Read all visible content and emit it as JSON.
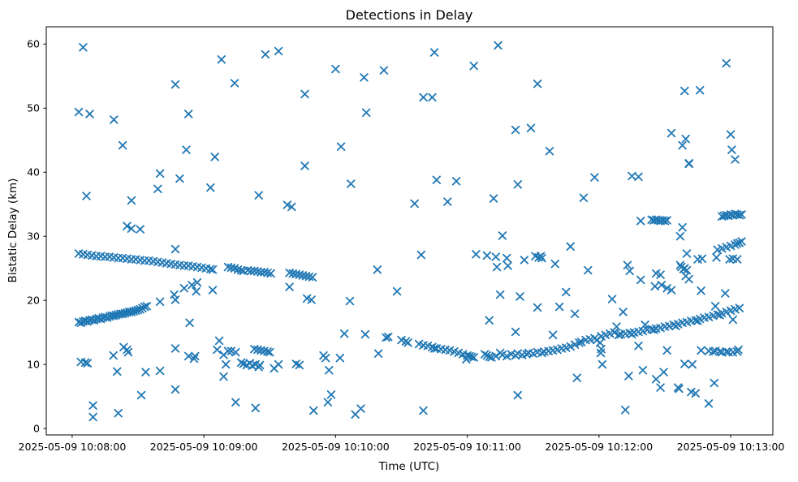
{
  "chart_data": {
    "type": "scatter",
    "title": "Detections in Delay",
    "xlabel": "Time (UTC)",
    "ylabel": "Bistatic Delay (km)",
    "marker": "x",
    "marker_color": "#1f77b4",
    "background_color": "#ffffff",
    "grid": false,
    "legend": null,
    "x_unit": "seconds since 2025-05-09 10:08:00 UTC",
    "xlim": [
      -11.8,
      319.2
    ],
    "ylim": [
      -1.0,
      62.7
    ],
    "x_ticks": [
      {
        "t": 0,
        "label": "2025-05-09 10:08:00"
      },
      {
        "t": 60,
        "label": "2025-05-09 10:09:00"
      },
      {
        "t": 120,
        "label": "2025-05-09 10:10:00"
      },
      {
        "t": 180,
        "label": "2025-05-09 10:11:00"
      },
      {
        "t": 240,
        "label": "2025-05-09 10:12:00"
      },
      {
        "t": 300,
        "label": "2025-05-09 10:13:00"
      }
    ],
    "y_ticks": [
      0,
      10,
      20,
      30,
      40,
      50,
      60
    ],
    "points": [
      [
        3,
        27.3
      ],
      [
        5,
        27.2
      ],
      [
        7,
        27.1
      ],
      [
        9,
        27.0
      ],
      [
        11,
        26.9
      ],
      [
        13,
        26.9
      ],
      [
        15,
        26.8
      ],
      [
        17,
        26.8
      ],
      [
        19,
        26.7
      ],
      [
        21,
        26.6
      ],
      [
        23,
        26.6
      ],
      [
        25,
        26.5
      ],
      [
        27,
        26.4
      ],
      [
        29,
        26.4
      ],
      [
        31,
        26.3
      ],
      [
        33,
        26.2
      ],
      [
        35,
        26.2
      ],
      [
        37,
        26.1
      ],
      [
        39,
        26.0
      ],
      [
        41,
        25.9
      ],
      [
        43,
        25.8
      ],
      [
        45,
        25.7
      ],
      [
        47,
        25.6
      ],
      [
        49,
        25.5
      ],
      [
        51,
        25.4
      ],
      [
        53,
        25.4
      ],
      [
        55,
        25.3
      ],
      [
        57,
        25.2
      ],
      [
        59,
        25.1
      ],
      [
        61,
        25.0
      ],
      [
        63,
        24.9
      ],
      [
        64,
        24.8
      ],
      [
        71,
        25.2
      ],
      [
        72.5,
        25.1
      ],
      [
        74,
        25.0
      ],
      [
        75.5,
        24.8
      ],
      [
        77,
        24.7
      ],
      [
        78,
        24.6
      ],
      [
        80,
        24.7
      ],
      [
        81.5,
        24.6
      ],
      [
        83,
        24.6
      ],
      [
        84.5,
        24.5
      ],
      [
        86,
        24.4
      ],
      [
        87.5,
        24.4
      ],
      [
        89,
        24.3
      ],
      [
        90.5,
        24.2
      ],
      [
        99,
        24.3
      ],
      [
        100.5,
        24.2
      ],
      [
        102,
        24.1
      ],
      [
        103.5,
        24.0
      ],
      [
        105,
        23.9
      ],
      [
        106.5,
        23.8
      ],
      [
        108,
        23.7
      ],
      [
        109.5,
        23.6
      ],
      [
        3,
        16.6
      ],
      [
        4,
        16.5
      ],
      [
        5,
        16.7
      ],
      [
        6,
        16.8
      ],
      [
        7,
        16.7
      ],
      [
        8,
        16.9
      ],
      [
        9,
        17.0
      ],
      [
        10,
        16.9
      ],
      [
        11,
        17.1
      ],
      [
        12,
        17.2
      ],
      [
        13,
        17.1
      ],
      [
        14,
        17.3
      ],
      [
        15,
        17.4
      ],
      [
        16,
        17.3
      ],
      [
        17,
        17.5
      ],
      [
        18,
        17.6
      ],
      [
        19,
        17.6
      ],
      [
        20,
        17.7
      ],
      [
        21,
        17.8
      ],
      [
        22,
        17.9
      ],
      [
        23,
        17.9
      ],
      [
        24,
        18.0
      ],
      [
        25,
        18.1
      ],
      [
        26,
        18.2
      ],
      [
        27,
        18.2
      ],
      [
        28,
        18.3
      ],
      [
        29,
        18.4
      ],
      [
        30,
        18.5
      ],
      [
        31,
        18.6
      ],
      [
        32,
        18.8
      ],
      [
        33,
        19.0
      ],
      [
        34,
        19.1
      ],
      [
        40,
        19.8
      ],
      [
        46.5,
        20.9
      ],
      [
        47,
        20.1
      ],
      [
        51,
        21.9
      ],
      [
        54.5,
        22.4
      ],
      [
        56.5,
        21.4
      ],
      [
        150,
        13.8
      ],
      [
        152,
        13.6
      ],
      [
        153,
        13.4
      ],
      [
        158,
        13.2
      ],
      [
        160,
        13.0
      ],
      [
        162,
        12.9
      ],
      [
        164,
        12.7
      ],
      [
        165,
        12.5
      ],
      [
        166,
        12.5
      ],
      [
        168,
        12.4
      ],
      [
        170,
        12.3
      ],
      [
        172,
        12.2
      ],
      [
        174,
        12.0
      ],
      [
        176,
        11.8
      ],
      [
        178,
        11.6
      ],
      [
        179.5,
        10.8
      ],
      [
        180,
        11.4
      ],
      [
        181,
        11.3
      ],
      [
        182,
        11.2
      ],
      [
        183,
        11.1
      ],
      [
        188,
        11.6
      ],
      [
        189,
        11.4
      ],
      [
        190,
        11.2
      ],
      [
        191,
        11.1
      ],
      [
        193,
        11.3
      ],
      [
        195,
        11.8
      ],
      [
        196,
        11.5
      ],
      [
        198,
        11.3
      ],
      [
        200,
        11.6
      ],
      [
        202,
        11.4
      ],
      [
        203,
        11.7
      ],
      [
        205,
        11.5
      ],
      [
        207,
        11.6
      ],
      [
        208,
        11.8
      ],
      [
        210,
        11.7
      ],
      [
        212,
        11.9
      ],
      [
        214,
        11.8
      ],
      [
        215,
        12.0
      ],
      [
        217,
        12.1
      ],
      [
        219,
        12.2
      ],
      [
        221,
        12.3
      ],
      [
        223,
        12.5
      ],
      [
        225,
        12.6
      ],
      [
        227,
        12.8
      ],
      [
        229,
        13.1
      ],
      [
        231,
        13.4
      ],
      [
        232,
        13.5
      ],
      [
        234,
        13.8
      ],
      [
        236,
        13.9
      ],
      [
        238,
        14.1
      ],
      [
        239,
        13.8
      ],
      [
        241,
        14.4
      ],
      [
        243,
        14.6
      ],
      [
        245,
        14.8
      ],
      [
        247,
        15.0
      ],
      [
        249,
        14.6
      ],
      [
        250,
        14.7
      ],
      [
        252,
        14.8
      ],
      [
        254,
        14.9
      ],
      [
        255,
        14.7
      ],
      [
        256,
        15.0
      ],
      [
        258,
        15.1
      ],
      [
        260,
        15.2
      ],
      [
        262,
        15.4
      ],
      [
        264,
        15.5
      ],
      [
        265,
        15.4
      ],
      [
        266,
        15.6
      ],
      [
        268,
        15.7
      ],
      [
        270,
        15.9
      ],
      [
        272,
        16.0
      ],
      [
        274,
        16.2
      ],
      [
        275,
        16.0
      ],
      [
        276,
        16.3
      ],
      [
        278,
        16.5
      ],
      [
        280,
        16.6
      ],
      [
        282,
        16.8
      ],
      [
        284,
        16.9
      ],
      [
        285,
        16.8
      ],
      [
        286,
        17.1
      ],
      [
        288,
        17.3
      ],
      [
        290,
        17.4
      ],
      [
        292,
        17.6
      ],
      [
        294,
        17.8
      ],
      [
        295,
        17.7
      ],
      [
        296,
        18.0
      ],
      [
        298,
        18.2
      ],
      [
        300,
        18.4
      ],
      [
        302,
        18.6
      ],
      [
        304,
        18.8
      ],
      [
        264,
        32.6
      ],
      [
        265,
        32.5
      ],
      [
        266,
        32.6
      ],
      [
        267,
        32.5
      ],
      [
        268,
        32.4
      ],
      [
        269,
        32.5
      ],
      [
        270,
        32.4
      ],
      [
        271,
        32.5
      ],
      [
        296,
        33.1
      ],
      [
        297,
        33.2
      ],
      [
        298,
        33.3
      ],
      [
        299,
        33.2
      ],
      [
        300,
        33.4
      ],
      [
        301,
        33.3
      ],
      [
        302,
        33.5
      ],
      [
        303,
        33.4
      ],
      [
        304,
        33.3
      ],
      [
        305,
        33.4
      ],
      [
        294,
        27.9
      ],
      [
        296,
        28.1
      ],
      [
        298,
        28.3
      ],
      [
        300,
        28.5
      ],
      [
        302,
        28.7
      ],
      [
        303,
        28.9
      ],
      [
        304,
        29.0
      ],
      [
        305,
        29.2
      ],
      [
        290,
        12.1
      ],
      [
        292,
        12.0
      ],
      [
        293,
        12.1
      ],
      [
        295,
        12.0
      ],
      [
        296,
        11.9
      ],
      [
        298,
        12.0
      ],
      [
        299,
        11.9
      ],
      [
        301,
        11.9
      ],
      [
        303,
        12.0
      ],
      [
        303.5,
        12.3
      ],
      [
        83,
        12.4
      ],
      [
        84.5,
        12.3
      ],
      [
        86,
        12.2
      ],
      [
        87.5,
        12.1
      ],
      [
        89,
        12.0
      ],
      [
        90,
        11.9
      ],
      [
        77,
        10.3
      ],
      [
        78,
        10.1
      ],
      [
        79.5,
        9.9
      ],
      [
        81,
        10.2
      ],
      [
        82,
        9.8
      ],
      [
        83.5,
        10.0
      ],
      [
        85,
        9.6
      ],
      [
        85.5,
        9.9
      ],
      [
        5,
        59.5
      ],
      [
        47,
        53.7
      ],
      [
        3,
        49.4
      ],
      [
        8,
        49.1
      ],
      [
        19,
        48.2
      ],
      [
        53,
        49.1
      ],
      [
        23,
        44.2
      ],
      [
        52,
        43.5
      ],
      [
        68,
        57.6
      ],
      [
        88,
        58.4
      ],
      [
        94,
        58.9
      ],
      [
        120,
        56.1
      ],
      [
        74,
        53.9
      ],
      [
        106,
        52.2
      ],
      [
        65,
        42.4
      ],
      [
        122.5,
        44.0
      ],
      [
        165,
        58.7
      ],
      [
        183,
        56.6
      ],
      [
        142,
        55.9
      ],
      [
        133,
        54.8
      ],
      [
        160,
        51.7
      ],
      [
        164,
        51.7
      ],
      [
        134,
        49.3
      ],
      [
        194,
        59.8
      ],
      [
        212,
        53.8
      ],
      [
        202,
        46.6
      ],
      [
        209,
        46.9
      ],
      [
        217.5,
        43.3
      ],
      [
        298,
        57.0
      ],
      [
        279,
        52.7
      ],
      [
        286,
        52.8
      ],
      [
        273,
        46.1
      ],
      [
        279.5,
        45.2
      ],
      [
        278,
        44.2
      ],
      [
        300,
        45.9
      ],
      [
        300.5,
        43.5
      ],
      [
        302,
        42.0
      ],
      [
        281,
        41.4
      ],
      [
        40,
        39.8
      ],
      [
        49,
        39.0
      ],
      [
        39,
        37.4
      ],
      [
        6.5,
        36.3
      ],
      [
        27,
        35.6
      ],
      [
        25,
        31.6
      ],
      [
        27,
        31.2
      ],
      [
        31,
        31.1
      ],
      [
        47,
        28.0
      ],
      [
        106,
        41.0
      ],
      [
        63,
        37.6
      ],
      [
        85,
        36.4
      ],
      [
        98,
        34.9
      ],
      [
        100,
        34.6
      ],
      [
        57,
        22.8
      ],
      [
        64,
        21.6
      ],
      [
        99,
        22.1
      ],
      [
        107,
        20.3
      ],
      [
        109,
        20.1
      ],
      [
        127,
        38.2
      ],
      [
        166,
        38.8
      ],
      [
        175,
        38.6
      ],
      [
        156,
        35.1
      ],
      [
        171,
        35.4
      ],
      [
        159,
        27.1
      ],
      [
        184,
        27.2
      ],
      [
        139,
        24.8
      ],
      [
        148,
        21.4
      ],
      [
        203,
        38.1
      ],
      [
        238,
        39.2
      ],
      [
        192,
        35.9
      ],
      [
        233,
        36.0
      ],
      [
        196,
        30.1
      ],
      [
        227,
        28.4
      ],
      [
        189,
        27.0
      ],
      [
        193,
        26.8
      ],
      [
        198,
        26.6
      ],
      [
        193.5,
        25.2
      ],
      [
        198.5,
        25.4
      ],
      [
        206,
        26.3
      ],
      [
        211,
        26.9
      ],
      [
        212.5,
        26.7
      ],
      [
        213.5,
        26.9
      ],
      [
        214,
        26.6
      ],
      [
        220,
        25.7
      ],
      [
        235,
        24.7
      ],
      [
        253,
        25.5
      ],
      [
        254,
        24.6
      ],
      [
        195,
        20.9
      ],
      [
        204,
        20.6
      ],
      [
        225,
        21.3
      ],
      [
        246,
        20.2
      ],
      [
        281,
        41.3
      ],
      [
        255,
        39.4
      ],
      [
        258,
        39.3
      ],
      [
        259,
        32.4
      ],
      [
        278,
        31.4
      ],
      [
        277,
        30.0
      ],
      [
        280,
        27.3
      ],
      [
        285,
        26.4
      ],
      [
        287,
        26.5
      ],
      [
        293.5,
        26.7
      ],
      [
        299.5,
        26.4
      ],
      [
        301,
        26.5
      ],
      [
        303,
        26.4
      ],
      [
        277,
        25.5
      ],
      [
        277.5,
        25.2
      ],
      [
        278.5,
        24.9
      ],
      [
        279,
        25.0
      ],
      [
        280,
        24.7
      ],
      [
        279.5,
        23.8
      ],
      [
        281,
        23.3
      ],
      [
        266,
        24.2
      ],
      [
        268,
        24.0
      ],
      [
        259,
        23.2
      ],
      [
        265.5,
        22.2
      ],
      [
        268.5,
        22.4
      ],
      [
        271,
        21.9
      ],
      [
        273,
        21.6
      ],
      [
        286.5,
        21.5
      ],
      [
        297.5,
        21.1
      ],
      [
        4,
        10.4
      ],
      [
        6,
        10.3
      ],
      [
        7,
        10.2
      ],
      [
        18.8,
        11.4
      ],
      [
        23.5,
        12.7
      ],
      [
        25,
        12.3
      ],
      [
        25.5,
        11.9
      ],
      [
        47,
        12.5
      ],
      [
        53,
        11.3
      ],
      [
        55.5,
        10.9
      ],
      [
        20.5,
        8.9
      ],
      [
        33.5,
        8.8
      ],
      [
        40,
        9.0
      ],
      [
        47,
        6.1
      ],
      [
        31.5,
        5.2
      ],
      [
        9.5,
        3.6
      ],
      [
        21,
        2.4
      ],
      [
        9.5,
        1.8
      ],
      [
        53.5,
        16.5
      ],
      [
        67,
        13.7
      ],
      [
        66,
        12.3
      ],
      [
        69,
        11.5
      ],
      [
        71,
        12.1
      ],
      [
        72.5,
        12.1
      ],
      [
        74.5,
        11.9
      ],
      [
        56,
        11.3
      ],
      [
        70,
        10.0
      ],
      [
        69,
        8.1
      ],
      [
        92,
        9.4
      ],
      [
        94,
        10.0
      ],
      [
        102,
        10.1
      ],
      [
        103.5,
        9.9
      ],
      [
        114.5,
        11.4
      ],
      [
        115.5,
        11.0
      ],
      [
        117,
        9.1
      ],
      [
        74.5,
        4.1
      ],
      [
        83.5,
        3.2
      ],
      [
        110,
        2.8
      ],
      [
        116.5,
        4.1
      ],
      [
        118,
        5.3
      ],
      [
        126.5,
        19.9
      ],
      [
        124,
        14.8
      ],
      [
        133.5,
        14.7
      ],
      [
        143,
        14.2
      ],
      [
        144,
        14.3
      ],
      [
        122,
        11.0
      ],
      [
        139.5,
        11.7
      ],
      [
        129,
        2.2
      ],
      [
        131.5,
        3.1
      ],
      [
        160,
        2.8
      ],
      [
        212,
        18.9
      ],
      [
        222,
        19.0
      ],
      [
        229,
        17.9
      ],
      [
        190,
        16.9
      ],
      [
        251,
        18.2
      ],
      [
        202,
        15.1
      ],
      [
        219,
        14.6
      ],
      [
        248,
        15.9
      ],
      [
        240.5,
        13.4
      ],
      [
        241,
        12.4
      ],
      [
        240.8,
        11.8
      ],
      [
        241.5,
        10.0
      ],
      [
        230,
        7.9
      ],
      [
        203,
        5.2
      ],
      [
        252,
        2.9
      ],
      [
        253.5,
        8.2
      ],
      [
        261,
        16.2
      ],
      [
        293,
        19.1
      ],
      [
        301,
        17.0
      ],
      [
        258,
        12.9
      ],
      [
        271,
        12.2
      ],
      [
        286.5,
        12.2
      ],
      [
        279,
        10.1
      ],
      [
        282.5,
        10.0
      ],
      [
        260,
        9.1
      ],
      [
        269.5,
        8.8
      ],
      [
        266,
        7.7
      ],
      [
        268,
        6.4
      ],
      [
        276,
        6.4
      ],
      [
        276.5,
        6.2
      ],
      [
        282,
        5.7
      ],
      [
        284,
        5.5
      ],
      [
        292.5,
        7.1
      ],
      [
        290,
        3.9
      ]
    ]
  }
}
